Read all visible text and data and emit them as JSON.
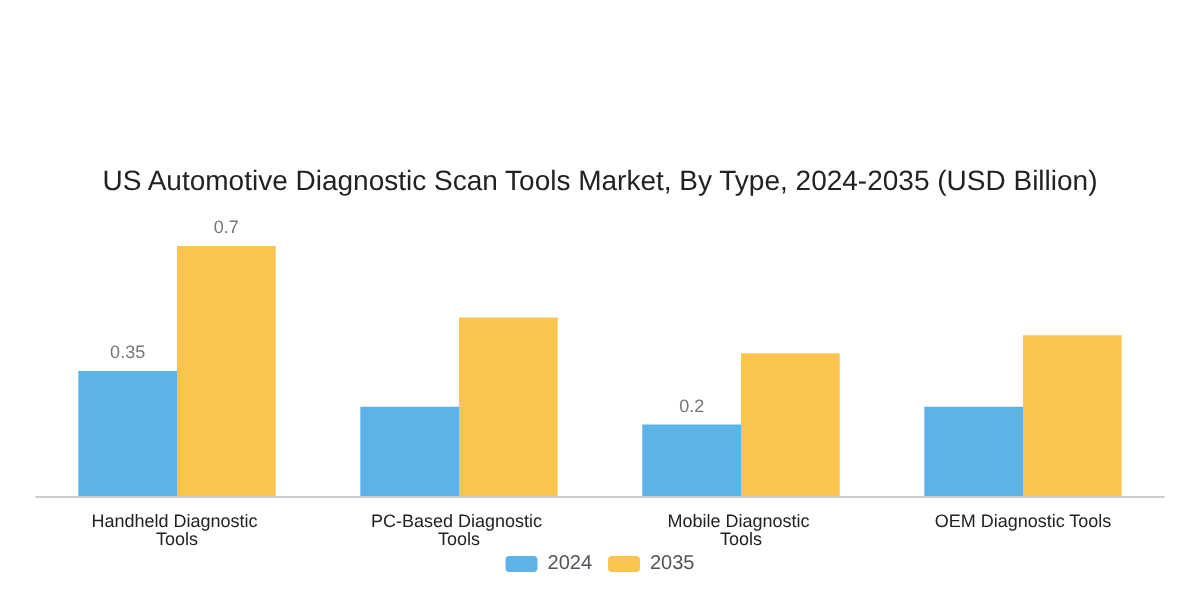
{
  "chart_data": {
    "type": "bar",
    "title": "US Automotive Diagnostic Scan Tools Market, By Type, 2024-2035 (USD Billion)",
    "categories": [
      "Handheld Diagnostic Tools",
      "PC-Based Diagnostic Tools",
      "Mobile Diagnostic Tools",
      "OEM Diagnostic Tools"
    ],
    "series": [
      {
        "name": "2024",
        "color": "#5db3e8",
        "values": [
          0.35,
          0.25,
          0.2,
          0.25
        ],
        "value_labels": [
          "0.35",
          null,
          "0.2",
          null
        ]
      },
      {
        "name": "2035",
        "color": "#fac44e",
        "values": [
          0.7,
          0.5,
          0.4,
          0.45
        ],
        "value_labels": [
          "0.7",
          null,
          null,
          null
        ]
      }
    ],
    "legend": "bottom"
  }
}
